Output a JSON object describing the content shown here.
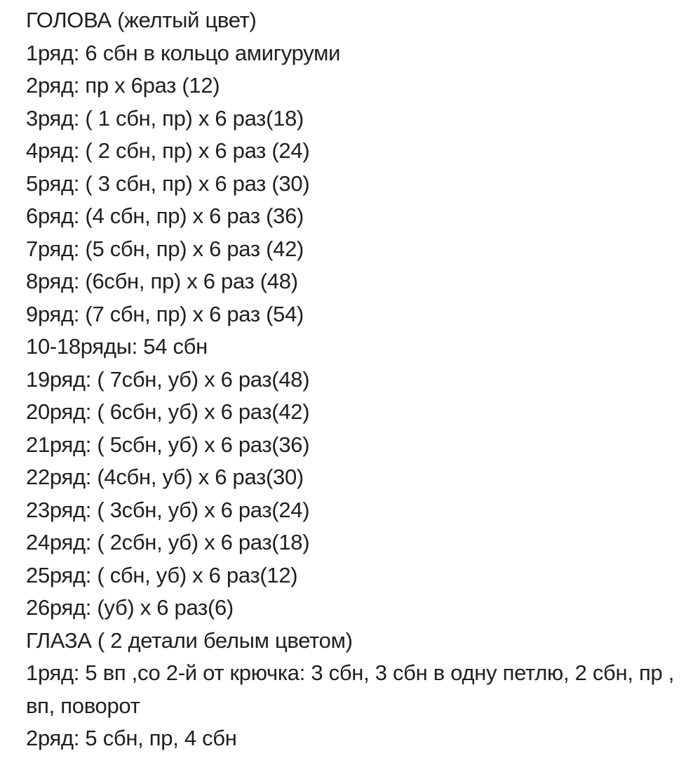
{
  "lines": [
    "ГОЛОВА (желтый цвет)",
    "1ряд: 6 сбн в кольцо амигуруми",
    "2ряд: пр х 6раз (12)",
    "3ряд: ( 1 сбн, пр) х 6 раз(18)",
    "4ряд: ( 2 сбн, пр) х 6 раз (24)",
    "5ряд: ( 3 сбн, пр) х 6 раз (30)",
    "6ряд: (4 сбн, пр) х 6 раз (36)",
    "7ряд: (5 сбн, пр) х 6 раз (42)",
    "8ряд: (6сбн, пр) х 6 раз (48)",
    "9ряд: (7 сбн, пр) х 6 раз (54)",
    "10-18ряды: 54 сбн",
    "19ряд: ( 7сбн, уб) х 6 раз(48)",
    "20ряд: ( 6сбн, уб) х 6 раз(42)",
    "21ряд: ( 5сбн, уб) х 6 раз(36)",
    "22ряд: (4сбн, уб) х 6 раз(30)",
    "23ряд: ( 3сбн, уб) х 6 раз(24)",
    "24ряд: ( 2сбн, уб) х 6 раз(18)",
    "25ряд: ( сбн, уб) х 6 раз(12)",
    "26ряд: (уб) х 6 раз(6)",
    "ГЛАЗА ( 2 детали белым цветом)",
    "1ряд: 5 вп ,со 2-й от крючка: 3 сбн, 3 сбн в одну петлю, 2 сбн, пр , вп, поворот",
    "2ряд: 5 сбн, пр, 4 сбн"
  ]
}
